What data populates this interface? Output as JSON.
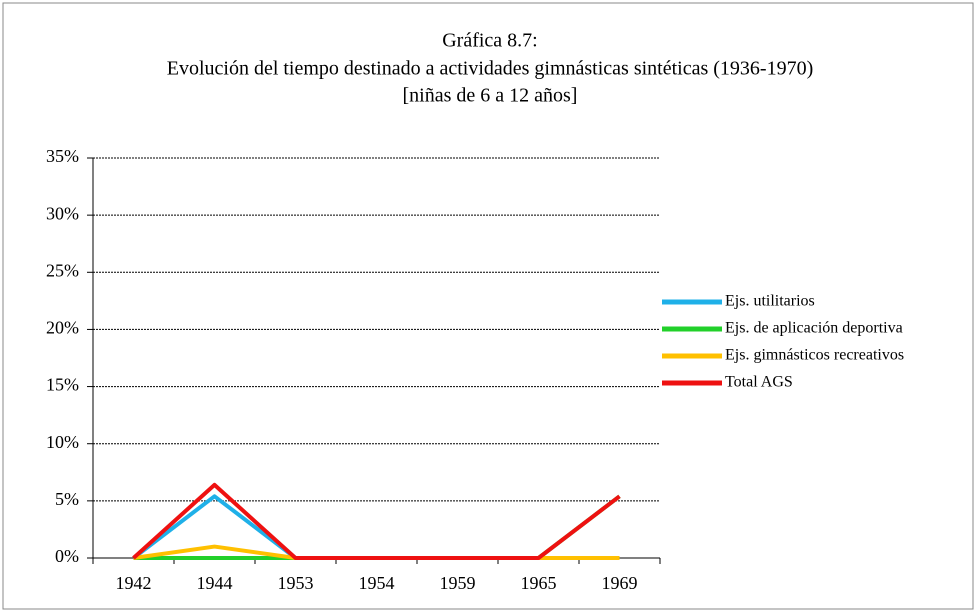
{
  "chart_data": {
    "type": "line",
    "title": "Gráfica 8.7:",
    "subtitle": [
      "Evolución del tiempo destinado a actividades gimnásticas sintéticas (1936-1970)",
      "[niñas de 6 a 12 años]"
    ],
    "categories": [
      "1942",
      "1944",
      "1953",
      "1954",
      "1959",
      "1965",
      "1969"
    ],
    "series": [
      {
        "name": "Ejs. utilitarios",
        "color": "#1fb0e8",
        "values": [
          0,
          5.4,
          0,
          0,
          0,
          0,
          0
        ]
      },
      {
        "name": "Ejs. de aplicación deportiva",
        "color": "#22d02a",
        "values": [
          0,
          0,
          0,
          0,
          0,
          0,
          5.4
        ]
      },
      {
        "name": "Ejs. gimnásticos recreativos",
        "color": "#ffc000",
        "values": [
          0,
          1,
          0,
          0,
          0,
          0,
          0
        ]
      },
      {
        "name": "Total AGS",
        "color": "#ee1111",
        "values": [
          0,
          6.4,
          0,
          0,
          0,
          0,
          5.4
        ]
      }
    ],
    "ylim": [
      0,
      35
    ],
    "yticks": [
      {
        "value": 0,
        "label": "0%"
      },
      {
        "value": 5,
        "label": "5%"
      },
      {
        "value": 10,
        "label": "10%"
      },
      {
        "value": 15,
        "label": "15%"
      },
      {
        "value": 20,
        "label": "20%"
      },
      {
        "value": 25,
        "label": "25%"
      },
      {
        "value": 30,
        "label": "30%"
      },
      {
        "value": 35,
        "label": "35%"
      }
    ],
    "grid": true,
    "legend": "right"
  }
}
